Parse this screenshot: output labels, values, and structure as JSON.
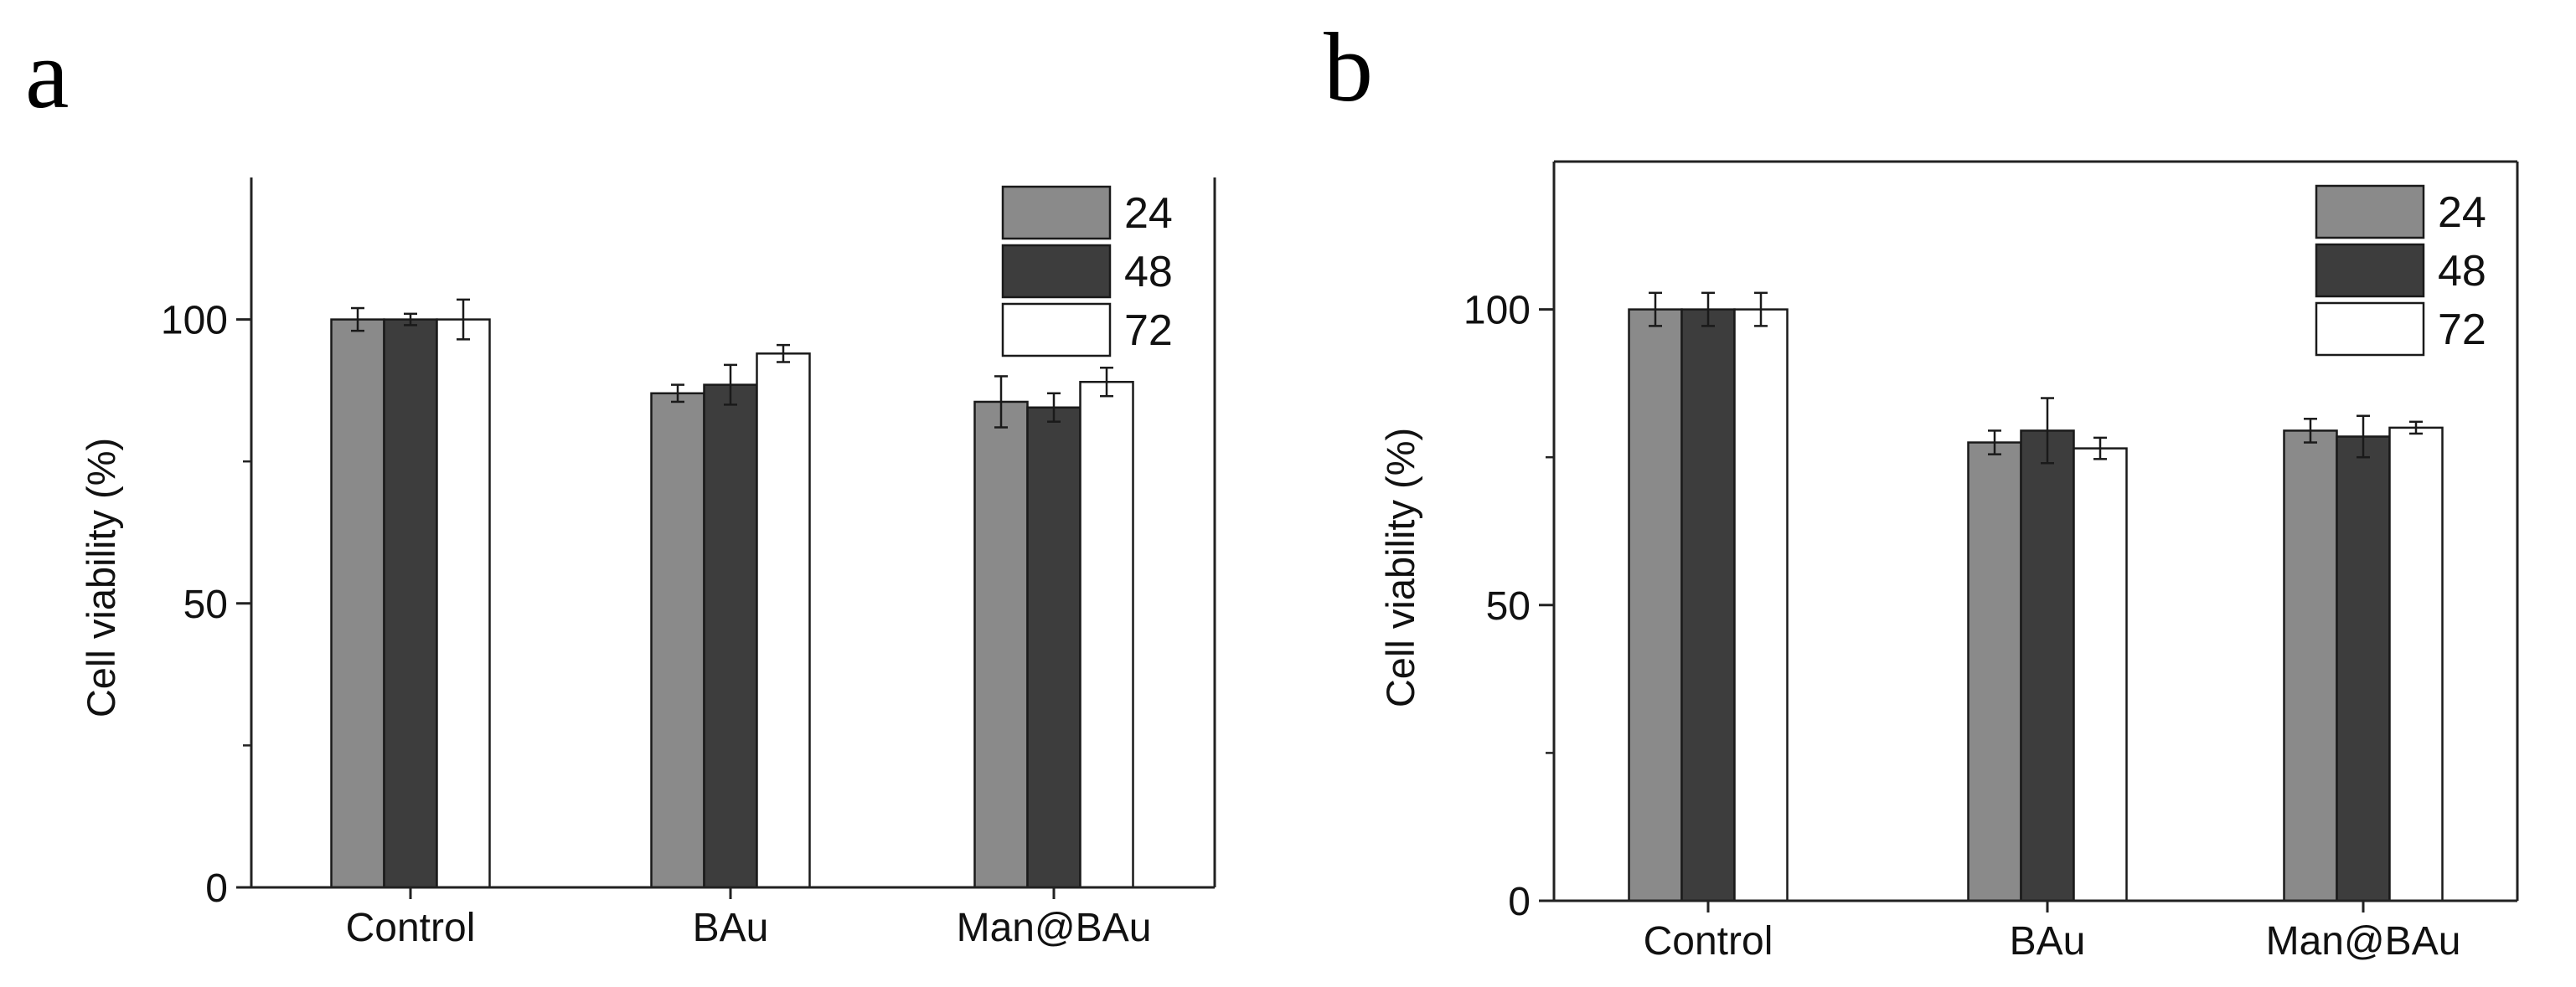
{
  "colors": {
    "series": [
      "#8a8a8a",
      "#3d3d3d",
      "#ffffff"
    ],
    "outline": "#1a1a1a",
    "axis": "#222222"
  },
  "chart_data": [
    {
      "panel": "a",
      "type": "bar",
      "categories": [
        "Control",
        "BAu",
        "Man@BAu"
      ],
      "series": [
        {
          "name": "24",
          "values": [
            100,
            87,
            85.5
          ],
          "errors": [
            2.0,
            1.5,
            4.5
          ]
        },
        {
          "name": "48",
          "values": [
            100,
            88.5,
            84.5
          ],
          "errors": [
            1.0,
            3.5,
            2.5
          ]
        },
        {
          "name": "72",
          "values": [
            100,
            94,
            89
          ],
          "errors": [
            3.5,
            1.5,
            2.5
          ]
        }
      ],
      "ylabel": "Cell viability (%)",
      "xlabel": "",
      "ylim": [
        0,
        125
      ],
      "yticks": [
        0,
        50,
        100
      ],
      "yticks_minor": [
        25,
        75
      ],
      "legend": "top-right"
    },
    {
      "panel": "b",
      "type": "bar",
      "categories": [
        "Control",
        "BAu",
        "Man@BAu"
      ],
      "series": [
        {
          "name": "24",
          "values": [
            100,
            77.5,
            79.5
          ],
          "errors": [
            2.8,
            2.0,
            2.0
          ]
        },
        {
          "name": "48",
          "values": [
            100,
            79.5,
            78.5
          ],
          "errors": [
            2.8,
            5.5,
            3.5
          ]
        },
        {
          "name": "72",
          "values": [
            100,
            76.5,
            80
          ],
          "errors": [
            2.8,
            1.8,
            1.0
          ]
        }
      ],
      "ylabel": "Cell viability (%)",
      "xlabel": "",
      "ylim": [
        0,
        125
      ],
      "yticks": [
        0,
        50,
        100
      ],
      "yticks_minor": [
        25,
        75
      ],
      "legend": "top-right"
    }
  ]
}
